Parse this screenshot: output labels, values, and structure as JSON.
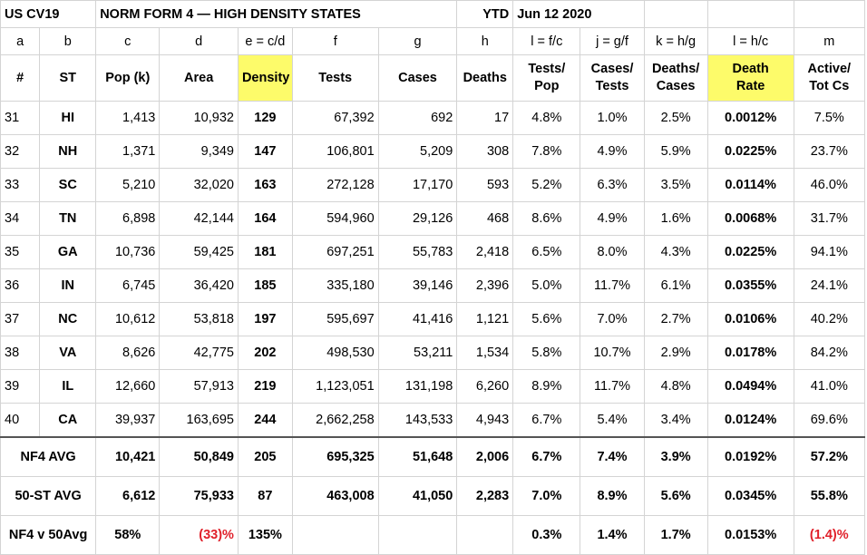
{
  "title": {
    "left": "US  CV19",
    "main": "NORM FORM 4 — HIGH DENSITY STATES",
    "ytd": "YTD",
    "date": "Jun 12 2020"
  },
  "column_letters": [
    "a",
    "b",
    "c",
    "d",
    "e = c/d",
    "f",
    "g",
    "h",
    "l = f/c",
    "j = g/f",
    "k = h/g",
    "l = h/c",
    "m"
  ],
  "headers": [
    [
      "#"
    ],
    [
      "ST"
    ],
    [
      "Pop (k)"
    ],
    [
      "Area"
    ],
    [
      "Density"
    ],
    [
      "Tests"
    ],
    [
      "Cases"
    ],
    [
      "Deaths"
    ],
    [
      "Tests/",
      "Pop"
    ],
    [
      "Cases/",
      "Tests"
    ],
    [
      "Deaths/",
      "Cases"
    ],
    [
      "Death",
      "Rate"
    ],
    [
      "Active/",
      "Tot Cs"
    ]
  ],
  "highlight_color": "#fdfb6a",
  "negative_color": "#e0202a",
  "rows": [
    [
      "31",
      "HI",
      "1,413",
      "10,932",
      "129",
      "67,392",
      "692",
      "17",
      "4.8%",
      "1.0%",
      "2.5%",
      "0.0012%",
      "7.5%"
    ],
    [
      "32",
      "NH",
      "1,371",
      "9,349",
      "147",
      "106,801",
      "5,209",
      "308",
      "7.8%",
      "4.9%",
      "5.9%",
      "0.0225%",
      "23.7%"
    ],
    [
      "33",
      "SC",
      "5,210",
      "32,020",
      "163",
      "272,128",
      "17,170",
      "593",
      "5.2%",
      "6.3%",
      "3.5%",
      "0.0114%",
      "46.0%"
    ],
    [
      "34",
      "TN",
      "6,898",
      "42,144",
      "164",
      "594,960",
      "29,126",
      "468",
      "8.6%",
      "4.9%",
      "1.6%",
      "0.0068%",
      "31.7%"
    ],
    [
      "35",
      "GA",
      "10,736",
      "59,425",
      "181",
      "697,251",
      "55,783",
      "2,418",
      "6.5%",
      "8.0%",
      "4.3%",
      "0.0225%",
      "94.1%"
    ],
    [
      "36",
      "IN",
      "6,745",
      "36,420",
      "185",
      "335,180",
      "39,146",
      "2,396",
      "5.0%",
      "11.7%",
      "6.1%",
      "0.0355%",
      "24.1%"
    ],
    [
      "37",
      "NC",
      "10,612",
      "53,818",
      "197",
      "595,697",
      "41,416",
      "1,121",
      "5.6%",
      "7.0%",
      "2.7%",
      "0.0106%",
      "40.2%"
    ],
    [
      "38",
      "VA",
      "8,626",
      "42,775",
      "202",
      "498,530",
      "53,211",
      "1,534",
      "5.8%",
      "10.7%",
      "2.9%",
      "0.0178%",
      "84.2%"
    ],
    [
      "39",
      "IL",
      "12,660",
      "57,913",
      "219",
      "1,123,051",
      "131,198",
      "6,260",
      "8.9%",
      "11.7%",
      "4.8%",
      "0.0494%",
      "41.0%"
    ],
    [
      "40",
      "CA",
      "39,937",
      "163,695",
      "244",
      "2,662,258",
      "143,533",
      "4,943",
      "6.7%",
      "5.4%",
      "3.4%",
      "0.0124%",
      "69.6%"
    ]
  ],
  "nf4_avg": {
    "label": "NF4 AVG",
    "values": [
      "10,421",
      "50,849",
      "205",
      "695,325",
      "51,648",
      "2,006",
      "6.7%",
      "7.4%",
      "3.9%",
      "0.0192%",
      "57.2%"
    ]
  },
  "st50_avg": {
    "label": "50-ST AVG",
    "values": [
      "6,612",
      "75,933",
      "87",
      "463,008",
      "41,050",
      "2,283",
      "7.0%",
      "8.9%",
      "5.6%",
      "0.0345%",
      "55.8%"
    ]
  },
  "comparison": {
    "label": "NF4 v 50Avg",
    "pop": "58%",
    "area": "(33)%",
    "density": "135%",
    "tests_pop": "0.3%",
    "cases_tests": "1.4%",
    "deaths_cases": "1.7%",
    "death_rate": "0.0153%",
    "active": "(1.4)%"
  }
}
